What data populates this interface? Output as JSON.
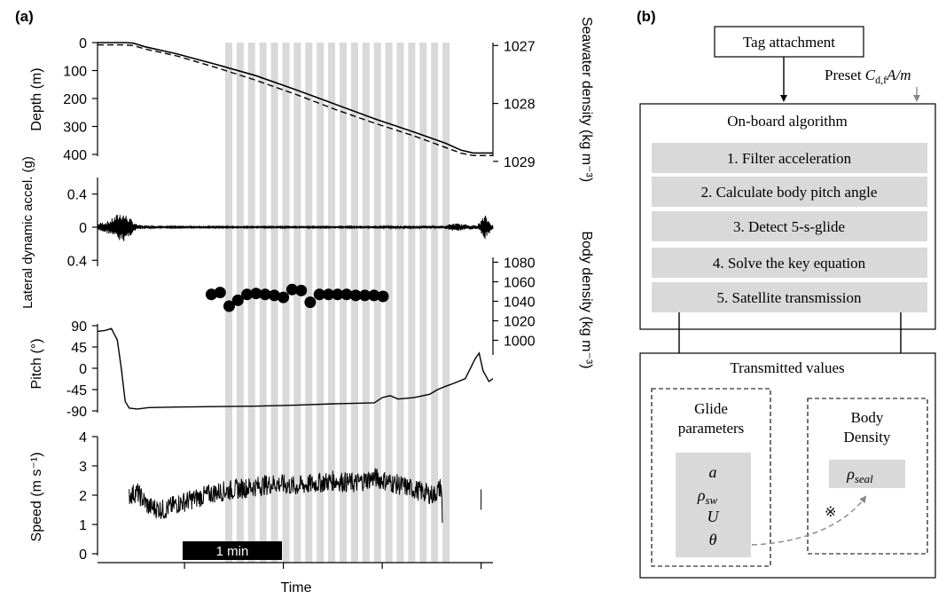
{
  "panel_a": {
    "panel_label": "(a)",
    "xlabel": "Time",
    "scalebar_label": "1 min",
    "chart_data": [
      {
        "type": "line",
        "title": "",
        "ylabel": "Depth (m)",
        "ylim": [
          0,
          400
        ],
        "yticks": [
          "0",
          "100",
          "200",
          "300",
          "400"
        ],
        "ylabel_right": "Seawater density (kg m⁻³)",
        "ylim_right": [
          1026.95,
          1028.88
        ],
        "yticks_right": [
          "1027",
          "1028",
          "1029"
        ],
        "series": [
          {
            "x": [
              0,
              0.07,
              0.09,
              0.12,
              0.2,
              0.3,
              0.4,
              0.5,
              0.6,
              0.7,
              0.8,
              0.88,
              0.92,
              0.95,
              1.0
            ],
            "values": [
              0,
              0,
              2,
              15,
              40,
              78,
              118,
              168,
              220,
              272,
              320,
              360,
              385,
              395,
              395
            ]
          },
          {
            "x": [
              0,
              0.07,
              0.09,
              0.12,
              0.2,
              0.3,
              0.4,
              0.5,
              0.6,
              0.7,
              0.8,
              0.88,
              0.92,
              0.95,
              1.0
            ],
            "values": [
              1026.95,
              1026.95,
              1026.96,
              1027.02,
              1027.14,
              1027.34,
              1027.56,
              1027.8,
              1028.06,
              1028.3,
              1028.52,
              1028.72,
              1028.82,
              1028.86,
              1028.86
            ]
          }
        ]
      },
      {
        "type": "line",
        "title": "",
        "ylabel": "Lateral dynamic accel. (g)",
        "ylim": [
          -0.6,
          0.6
        ],
        "yticks": [
          "0.4",
          "0",
          "0.4"
        ],
        "series": [
          {
            "x": [
              0,
              0.03,
              0.06,
              0.08,
              0.1,
              0.15,
              0.2,
              0.3,
              0.5,
              0.7,
              0.88,
              0.9,
              0.96,
              0.98,
              1.0
            ],
            "values": [
              0.05,
              0.08,
              0.2,
              0.12,
              0.03,
              0.01,
              0.01,
              0.01,
              0.01,
              0.01,
              0.02,
              0.05,
              0.02,
              0.15,
              0.02
            ]
          }
        ]
      },
      {
        "type": "line",
        "title": "",
        "ylabel": "Pitch (°)",
        "ylim": [
          -90,
          90
        ],
        "yticks": [
          "90",
          "45",
          "0",
          "-45",
          "-90"
        ],
        "ylabel_right": "Body density (kg m⁻³)",
        "ylim_right": [
          985,
          1085
        ],
        "yticks_right": [
          "1080",
          "1060",
          "1040",
          "1020",
          "1000"
        ],
        "series": [
          {
            "x": [
              0,
              0.02,
              0.035,
              0.05,
              0.06,
              0.07,
              0.08,
              0.1,
              0.13,
              0.2,
              0.3,
              0.4,
              0.5,
              0.6,
              0.7,
              0.72,
              0.74,
              0.76,
              0.8,
              0.84,
              0.86,
              0.88,
              0.9,
              0.93,
              0.955,
              0.965,
              0.975,
              0.99,
              1.0
            ],
            "values": [
              78,
              80,
              84,
              60,
              0,
              -70,
              -84,
              -86,
              -83,
              -82,
              -81,
              -80,
              -78,
              -75,
              -73,
              -62,
              -58,
              -65,
              -62,
              -55,
              -45,
              -38,
              -32,
              -22,
              20,
              32,
              -5,
              -28,
              -22
            ]
          },
          {
            "type": "scatter",
            "x": [
              0.288,
              0.31,
              0.333,
              0.355,
              0.378,
              0.401,
              0.424,
              0.447,
              0.47,
              0.492,
              0.515,
              0.538,
              0.561,
              0.584,
              0.607,
              0.63,
              0.653,
              0.676,
              0.699,
              0.722
            ],
            "values": [
              1047,
              1049,
              1035,
              1041,
              1047,
              1048,
              1047,
              1046,
              1044,
              1052,
              1051,
              1039,
              1047,
              1047,
              1047,
              1047,
              1046,
              1046,
              1046,
              1045
            ]
          }
        ]
      },
      {
        "type": "line",
        "title": "",
        "ylabel": "Speed (m s⁻¹)",
        "ylim": [
          0,
          4
        ],
        "yticks": [
          "4",
          "3",
          "2",
          "1",
          "0"
        ],
        "series": [
          {
            "x": [
              0.08,
              0.1,
              0.13,
              0.17,
              0.2,
              0.25,
              0.3,
              0.35,
              0.4,
              0.45,
              0.5,
              0.55,
              0.6,
              0.65,
              0.7,
              0.75,
              0.8,
              0.85,
              0.87,
              0.872,
              0.96,
              0.97
            ],
            "values": [
              2.0,
              2.1,
              1.6,
              1.5,
              1.7,
              1.9,
              2.1,
              2.2,
              2.3,
              2.4,
              2.3,
              2.4,
              2.5,
              2.4,
              2.6,
              2.4,
              2.2,
              2.0,
              2.3,
              0.9,
              2.2,
              1.5
            ]
          }
        ]
      }
    ]
  },
  "panel_b": {
    "panel_label": "(b)",
    "tag_attachment": "Tag attachment",
    "preset_prefix": "Preset ",
    "preset_C": "C",
    "preset_sub": "d,f",
    "preset_rest": "A/m",
    "onboard_title": "On-board algorithm",
    "steps": [
      "1. Filter acceleration",
      "2. Calculate body pitch angle",
      "3. Detect 5-s-glide",
      "4. Solve the key equation",
      "5. Satellite transmission"
    ],
    "transmitted_title": "Transmitted values",
    "glide_line1": "Glide",
    "glide_line2": "parameters",
    "glide_vars": {
      "a": "a",
      "rho": "ρ",
      "rho_sub": "sw",
      "U": "U",
      "theta": "θ"
    },
    "body_line1": "Body",
    "body_line2": "Density",
    "rho_seal": "ρ",
    "rho_seal_sub": "seal",
    "reference_mark": "※",
    "colors": {
      "box_fill": "#d9d9d9",
      "grey_band": "#d9d9d9",
      "arrow_grey": "#888888"
    }
  }
}
